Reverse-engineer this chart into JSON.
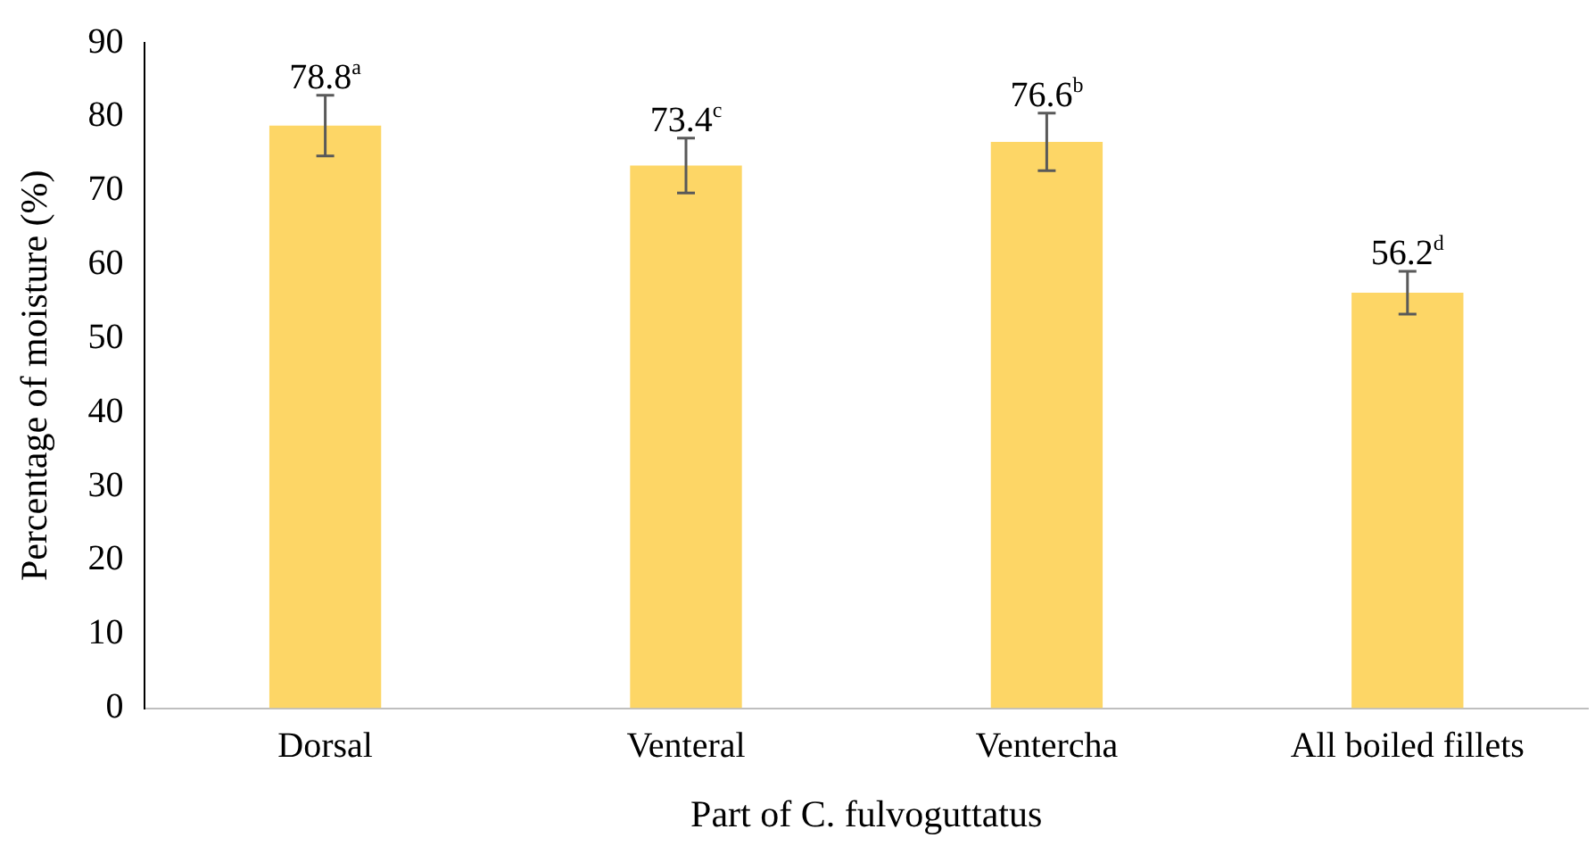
{
  "chart_data": {
    "type": "bar",
    "xlabel": "Part of C. fulvoguttatus",
    "ylabel": "Percentage of moisture (%)",
    "categories": [
      "Dorsal",
      "Venteral",
      "Ventercha",
      "All boiled fillets"
    ],
    "values": [
      78.8,
      73.4,
      76.6,
      56.2
    ],
    "errors": [
      4.1,
      3.7,
      3.9,
      2.9
    ],
    "value_labels": [
      "78.8$^{a}$",
      "73.4$^{c}$",
      "76.6$^{b}$",
      "56.2$^{d}$"
    ],
    "color": "#fdd666",
    "ylim": [
      0,
      90
    ],
    "yticks": [
      0,
      10,
      20,
      30,
      40,
      50,
      60,
      70,
      80,
      90
    ],
    "grid": false,
    "legend": false
  }
}
